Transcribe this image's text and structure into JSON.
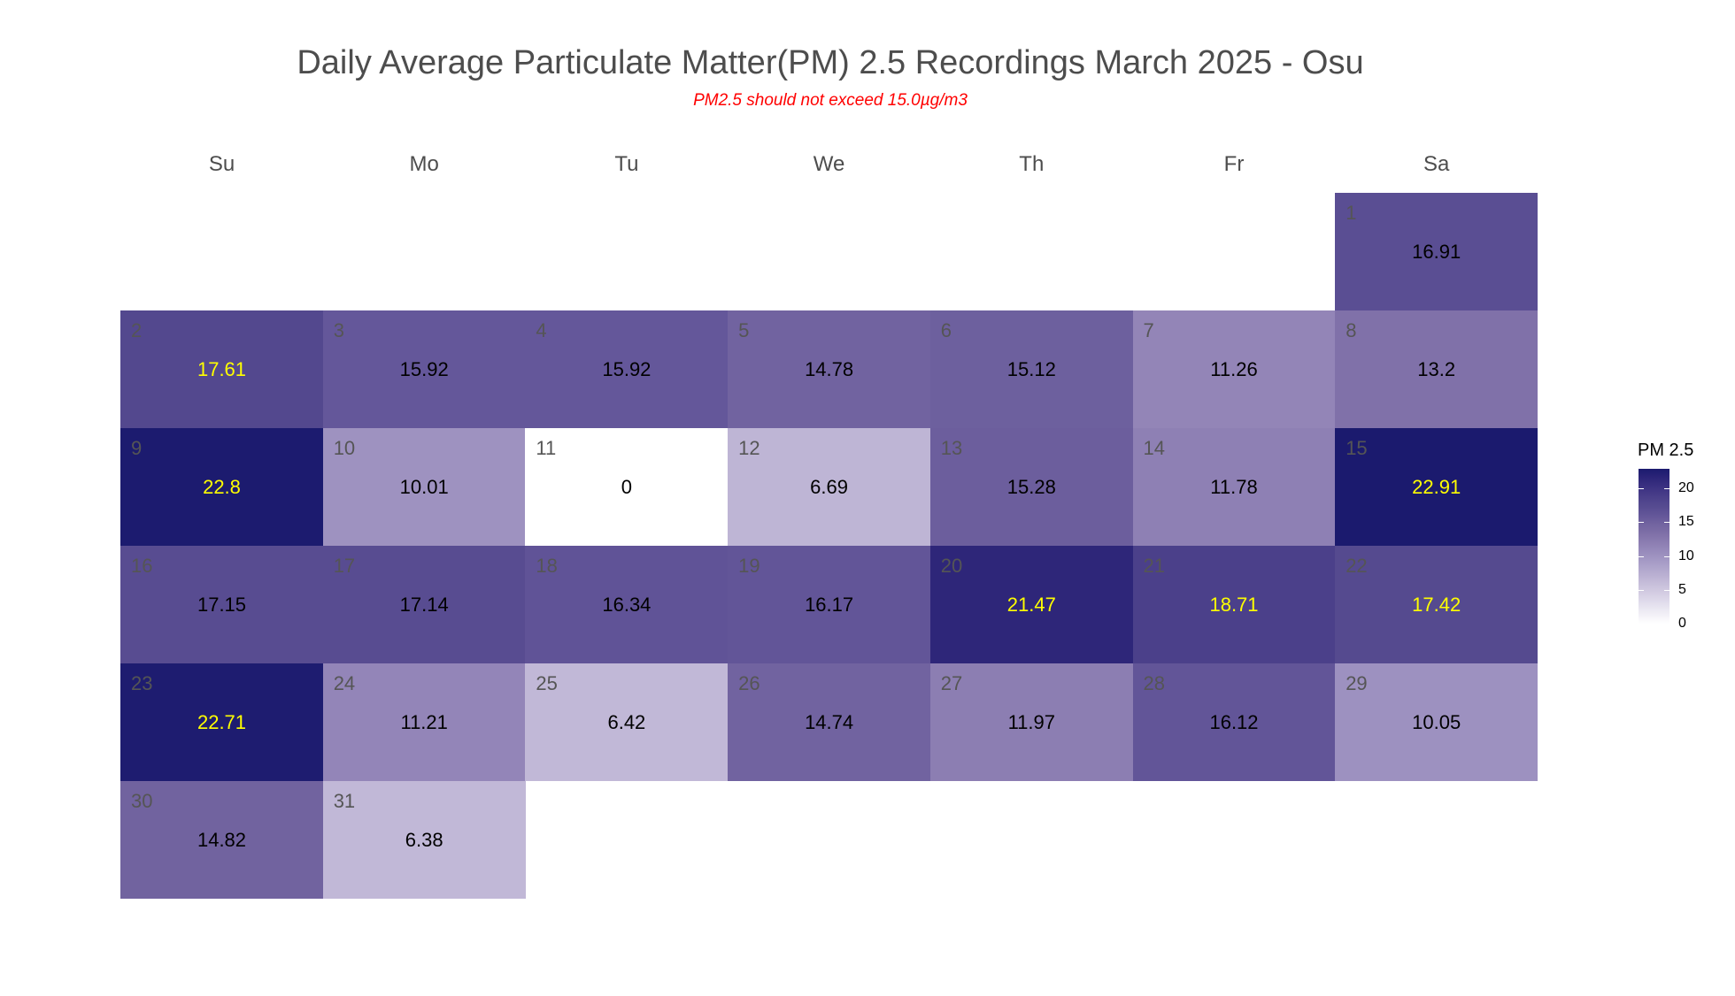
{
  "chart_data": {
    "type": "heatmap",
    "title": "Daily Average Particulate Matter(PM) 2.5 Recordings March 2025 -  Osu",
    "subtitle": "PM2.5 should not exceed 15.0µg/m3",
    "subtitle_color": "#ff0000",
    "weekdays": [
      "Su",
      "Mo",
      "Tu",
      "We",
      "Th",
      "Fr",
      "Sa"
    ],
    "month": "March 2025",
    "first_weekday_index": 6,
    "legend": {
      "title": "PM 2.5",
      "range": [
        0,
        22.91
      ],
      "ticks": [
        0,
        5,
        10,
        15,
        20
      ],
      "tick_labels": [
        "0",
        "5",
        "10",
        "15",
        "20"
      ],
      "low_color": "#ffffff",
      "high_color": "#1b1a6e",
      "placement": "right"
    },
    "value_label_colors": {
      "normal": "#000000",
      "high": "#ffff00"
    },
    "days": [
      {
        "day": 1,
        "value": 16.91,
        "label": "16.91",
        "label_color": "#000000"
      },
      {
        "day": 2,
        "value": 17.61,
        "label": "17.61",
        "label_color": "#ffff00"
      },
      {
        "day": 3,
        "value": 15.92,
        "label": "15.92",
        "label_color": "#000000"
      },
      {
        "day": 4,
        "value": 15.92,
        "label": "15.92",
        "label_color": "#000000"
      },
      {
        "day": 5,
        "value": 14.78,
        "label": "14.78",
        "label_color": "#000000"
      },
      {
        "day": 6,
        "value": 15.12,
        "label": "15.12",
        "label_color": "#000000"
      },
      {
        "day": 7,
        "value": 11.26,
        "label": "11.26",
        "label_color": "#000000"
      },
      {
        "day": 8,
        "value": 13.2,
        "label": "13.2",
        "label_color": "#000000"
      },
      {
        "day": 9,
        "value": 22.8,
        "label": "22.8",
        "label_color": "#ffff00"
      },
      {
        "day": 10,
        "value": 10.01,
        "label": "10.01",
        "label_color": "#000000"
      },
      {
        "day": 11,
        "value": 0,
        "label": "0",
        "label_color": "#000000"
      },
      {
        "day": 12,
        "value": 6.69,
        "label": "6.69",
        "label_color": "#000000"
      },
      {
        "day": 13,
        "value": 15.28,
        "label": "15.28",
        "label_color": "#000000"
      },
      {
        "day": 14,
        "value": 11.78,
        "label": "11.78",
        "label_color": "#000000"
      },
      {
        "day": 15,
        "value": 22.91,
        "label": "22.91",
        "label_color": "#ffff00"
      },
      {
        "day": 16,
        "value": 17.15,
        "label": "17.15",
        "label_color": "#000000"
      },
      {
        "day": 17,
        "value": 17.14,
        "label": "17.14",
        "label_color": "#000000"
      },
      {
        "day": 18,
        "value": 16.34,
        "label": "16.34",
        "label_color": "#000000"
      },
      {
        "day": 19,
        "value": 16.17,
        "label": "16.17",
        "label_color": "#000000"
      },
      {
        "day": 20,
        "value": 21.47,
        "label": "21.47",
        "label_color": "#ffff00"
      },
      {
        "day": 21,
        "value": 18.71,
        "label": "18.71",
        "label_color": "#ffff00"
      },
      {
        "day": 22,
        "value": 17.42,
        "label": "17.42",
        "label_color": "#ffff00"
      },
      {
        "day": 23,
        "value": 22.71,
        "label": "22.71",
        "label_color": "#ffff00"
      },
      {
        "day": 24,
        "value": 11.21,
        "label": "11.21",
        "label_color": "#000000"
      },
      {
        "day": 25,
        "value": 6.42,
        "label": "6.42",
        "label_color": "#000000"
      },
      {
        "day": 26,
        "value": 14.74,
        "label": "14.74",
        "label_color": "#000000"
      },
      {
        "day": 27,
        "value": 11.97,
        "label": "11.97",
        "label_color": "#000000"
      },
      {
        "day": 28,
        "value": 16.12,
        "label": "16.12",
        "label_color": "#000000"
      },
      {
        "day": 29,
        "value": 10.05,
        "label": "10.05",
        "label_color": "#000000"
      },
      {
        "day": 30,
        "value": 14.82,
        "label": "14.82",
        "label_color": "#000000"
      },
      {
        "day": 31,
        "value": 6.38,
        "label": "6.38",
        "label_color": "#000000"
      }
    ]
  }
}
